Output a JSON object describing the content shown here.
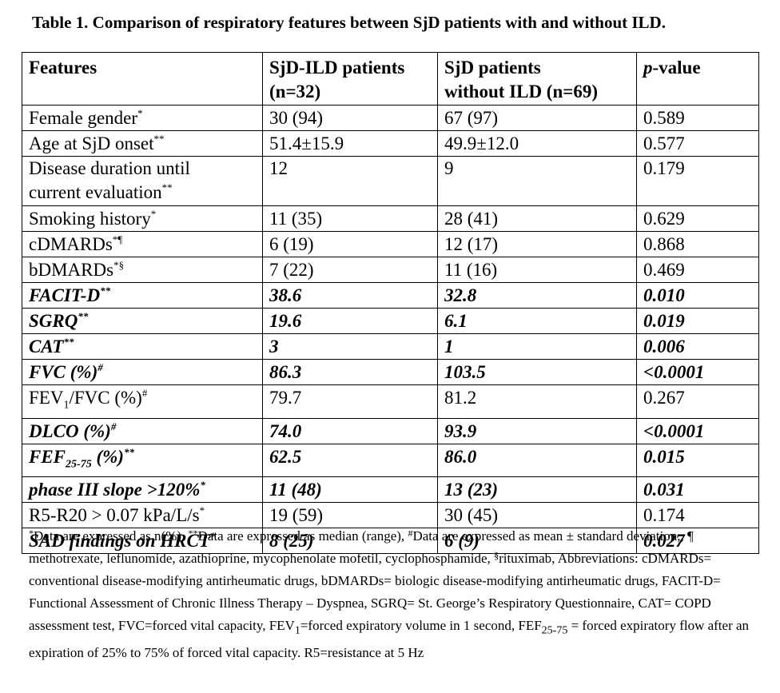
{
  "title": "Table 1. Comparison of respiratory features between SjD patients with and without ILD.",
  "header": {
    "features": "Features",
    "ild_line1": "SjD-ILD patients",
    "ild_line2": "(n=32)",
    "noild_line1": "SjD patients",
    "noild_line2": "without ILD (n=69)",
    "p_italic": "p",
    "p_rest": "-value"
  },
  "rows": [
    {
      "feature": "Female gender",
      "mark": "*",
      "ild": "30 (94)",
      "noild": "67 (97)",
      "p": "0.589",
      "bold": false
    },
    {
      "feature": "Age at SjD onset",
      "mark": "**",
      "ild": "51.4±15.9",
      "noild": "49.9±12.0",
      "p": "0.577",
      "bold": false
    },
    {
      "feature_line1": "Disease duration until",
      "feature_line2": "current evaluation",
      "mark": "**",
      "ild": "12",
      "noild": "9",
      "p": "0.179",
      "bold": false
    },
    {
      "feature": "Smoking history",
      "mark": "*",
      "ild": "11 (35)",
      "noild": "28 (41)",
      "p": "0.629",
      "bold": false
    },
    {
      "feature": "cDMARDs",
      "mark": "*¶",
      "ild": "6 (19)",
      "noild": "12 (17)",
      "p": "0.868",
      "bold": false
    },
    {
      "feature": "bDMARDs",
      "mark": "*§",
      "ild": "7 (22)",
      "noild": "11 (16)",
      "p": "0.469",
      "bold": false
    },
    {
      "feature": "FACIT-D",
      "mark": "**",
      "ild": "38.6",
      "noild": "32.8",
      "p": "0.010",
      "bold": true
    },
    {
      "feature": "SGRQ",
      "mark": "**",
      "ild": "19.6",
      "noild": "6.1",
      "p": "0.019",
      "bold": true
    },
    {
      "feature": "CAT",
      "mark": "**",
      "ild": "3",
      "noild": "1",
      "p": "0.006",
      "bold": true
    },
    {
      "feature": "FVC (%)",
      "mark": "#",
      "ild": "86.3",
      "noild": "103.5",
      "p": "<0.0001",
      "bold": true
    },
    {
      "feature_a": "FEV",
      "feature_sub": "1",
      "feature_b": "/FVC (%)",
      "mark": "#",
      "ild": "79.7",
      "noild": "81.2",
      "p": "0.267",
      "bold": false
    },
    {
      "feature": "DLCO (%)",
      "mark": "#",
      "ild": "74.0",
      "noild": "93.9",
      "p": "<0.0001",
      "bold": true
    },
    {
      "feature_a": "FEF",
      "feature_sub": "25-75",
      "feature_b": " (%)",
      "mark": "**",
      "ild": "62.5",
      "noild": "86.0",
      "p": "0.015",
      "bold": true
    },
    {
      "feature": "phase III slope >120%",
      "mark": "*",
      "ild": "11 (48)",
      "noild": "13 (23)",
      "p": "0.031",
      "bold": true
    },
    {
      "feature": "R5-R20 > 0.07 kPa/L/s",
      "mark": "*",
      "ild": "19 (59)",
      "noild": "30 (45)",
      "p": "0.174",
      "bold": false
    },
    {
      "feature": "SAD findings on HRCT",
      "mark": "*",
      "ild": "8 (25)",
      "noild": "6 (9)",
      "p": "0.027",
      "bold": true
    }
  ],
  "notes": {
    "m1": "*",
    "t1": "Data are expressed as n(%), ",
    "m2": "**",
    "t2": "Data are expressed as median (range), ",
    "m3": "#",
    "t3": "Data are expressed as mean ± standard deviation,, ",
    "t4": "¶ methotrexate, leflunomide, azathioprine, mycophenolate mofetil, cyclophosphamide, ",
    "m5": "§",
    "t5": "rituximab, Abbreviations: cDMARDs= conventional disease-modifying antirheumatic drugs, bDMARDs= biologic disease-modifying antirheumatic drugs, FACIT-D= Functional Assessment of Chronic Illness Therapy – Dyspnea, SGRQ= St. George’s Respiratory Questionnaire, CAT= COPD assessment test, FVC=forced vital capacity, FEV",
    "s6": "1",
    "t6": "=forced expiratory volume in 1 second, FEF",
    "s7": "25-75",
    "t7": " = forced expiratory flow after an expiration of 25% to 75% of forced vital capacity. R5=resistance at 5 Hz"
  }
}
